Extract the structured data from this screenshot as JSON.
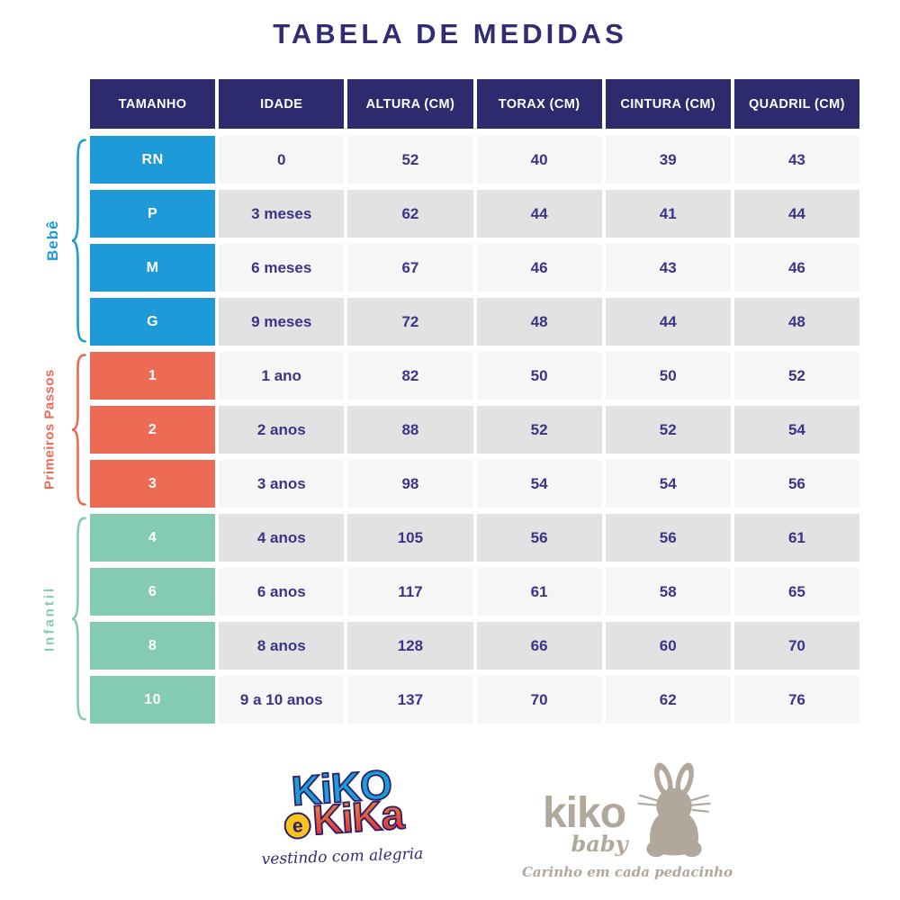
{
  "title": "TABELA DE MEDIDAS",
  "table": {
    "headers": [
      "TAMANHO",
      "IDADE",
      "ALTURA (CM)",
      "TORAX (CM)",
      "CINTURA (CM)",
      "QUADRIL (CM)"
    ],
    "colors": {
      "header_bg": "#2D2A6E",
      "header_text": "#FFFFFF",
      "value_text": "#3C3488",
      "row_light": "#F6F6F6",
      "row_dark": "#E2E2E2",
      "title_text": "#322C74"
    },
    "groups": [
      {
        "label": "Bebê",
        "color": "#1D9AD7",
        "rows": [
          [
            "RN",
            "0",
            "52",
            "40",
            "39",
            "43"
          ],
          [
            "P",
            "3 meses",
            "62",
            "44",
            "41",
            "44"
          ],
          [
            "M",
            "6 meses",
            "67",
            "46",
            "43",
            "46"
          ],
          [
            "G",
            "9 meses",
            "72",
            "48",
            "44",
            "48"
          ]
        ]
      },
      {
        "label": "Primeiros Passos",
        "color": "#ED6A55",
        "rows": [
          [
            "1",
            "1 ano",
            "82",
            "50",
            "50",
            "52"
          ],
          [
            "2",
            "2 anos",
            "88",
            "52",
            "52",
            "54"
          ],
          [
            "3",
            "3 anos",
            "98",
            "54",
            "54",
            "56"
          ]
        ]
      },
      {
        "label": "Infantil",
        "color": "#84CBB2",
        "rows": [
          [
            "4",
            "4 anos",
            "105",
            "56",
            "56",
            "61"
          ],
          [
            "6",
            "6 anos",
            "117",
            "61",
            "58",
            "65"
          ],
          [
            "8",
            "8 anos",
            "128",
            "66",
            "60",
            "70"
          ],
          [
            "10",
            "9 a 10 anos",
            "137",
            "70",
            "62",
            "76"
          ]
        ]
      }
    ]
  },
  "logos": {
    "kiko_e_kika": {
      "word1": "KiKO",
      "connector": "e",
      "word2": "KiKa",
      "tagline": "vestindo com alegria",
      "blue": "#1E9CD8",
      "yellow": "#F7C31E",
      "orange": "#F08A3C",
      "red": "#E0283E",
      "outline": "#2A2168"
    },
    "kiko_baby": {
      "name": "kiko",
      "sub": "baby",
      "tagline": "Carinho em cada pedacinho",
      "color": "#B1A89B"
    }
  }
}
